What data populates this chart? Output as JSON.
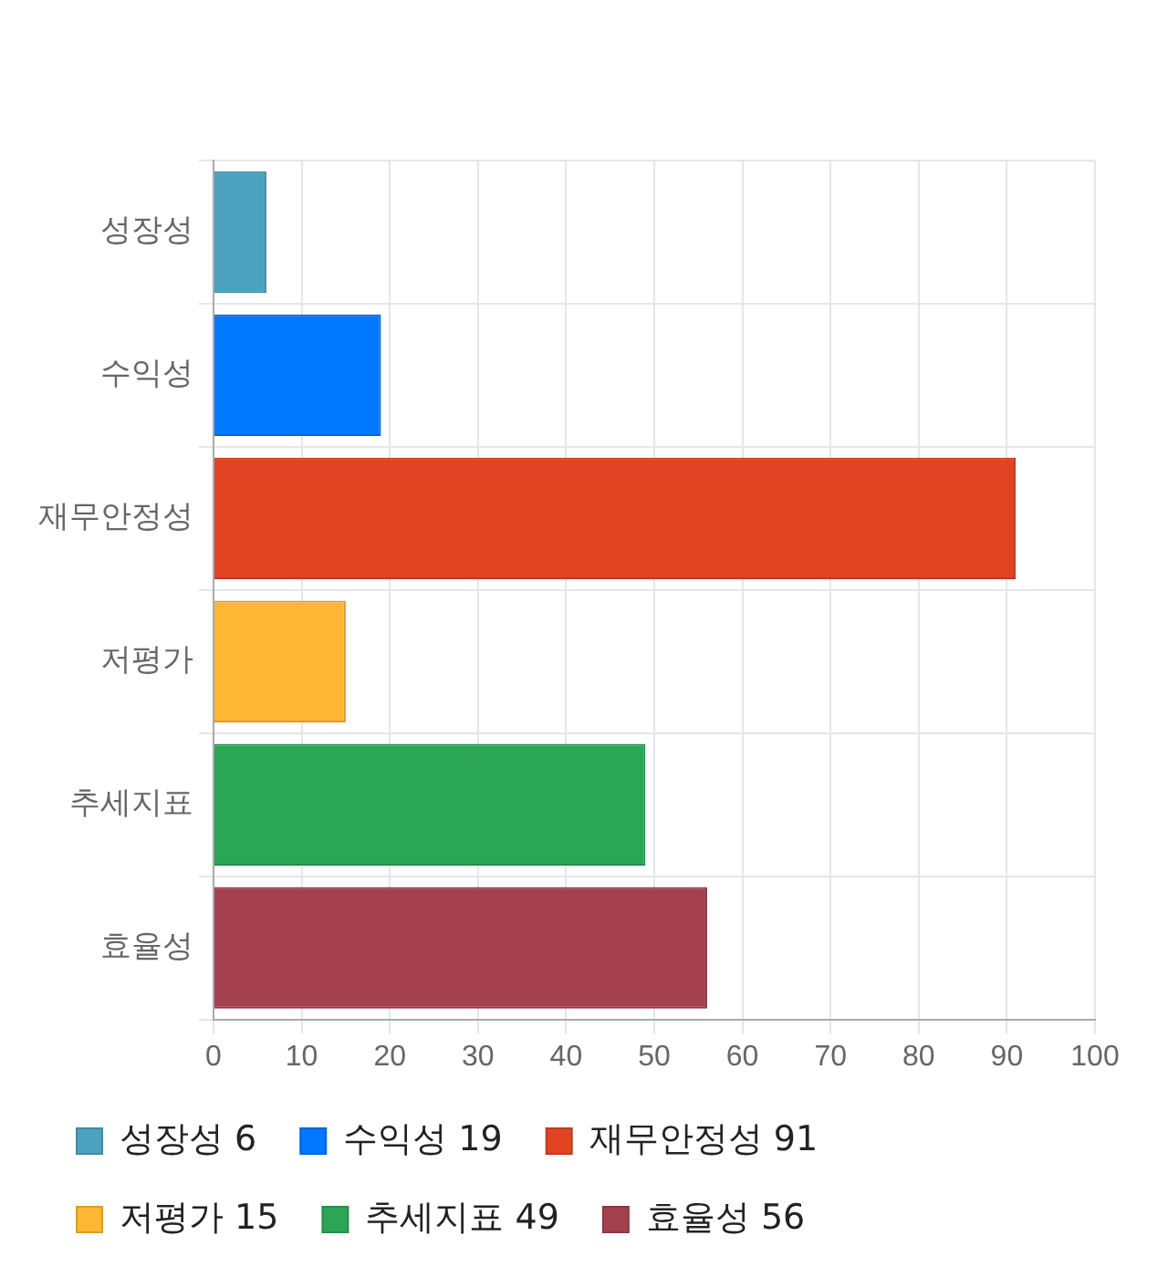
{
  "chart_data": {
    "type": "bar",
    "orientation": "horizontal",
    "stacked": true,
    "categories": [
      "성장성",
      "수익성",
      "재무안정성",
      "저평가",
      "추세지표",
      "효율성"
    ],
    "series": [
      {
        "name": "성장성 6",
        "color": "#4ba3bf",
        "values": [
          6,
          null,
          null,
          null,
          null,
          null
        ]
      },
      {
        "name": "수익성 19",
        "color": "#0077ff",
        "values": [
          null,
          19,
          null,
          null,
          null,
          null
        ]
      },
      {
        "name": "재무안정성 91",
        "color": "#e24423",
        "values": [
          null,
          null,
          91,
          null,
          null,
          null
        ]
      },
      {
        "name": "저평가 15",
        "color": "#ffb734",
        "values": [
          null,
          null,
          null,
          15,
          null,
          null
        ]
      },
      {
        "name": "추세지표 49",
        "color": "#2aa655",
        "values": [
          null,
          null,
          null,
          null,
          49,
          null
        ]
      },
      {
        "name": "효율성 56",
        "color": "#a5404f",
        "values": [
          null,
          null,
          null,
          null,
          null,
          56
        ]
      }
    ],
    "xlim": [
      0,
      100
    ],
    "xticks": [
      0,
      10,
      20,
      30,
      40,
      50,
      60,
      70,
      80,
      90,
      100
    ],
    "grid": true,
    "legend": "bottom"
  }
}
